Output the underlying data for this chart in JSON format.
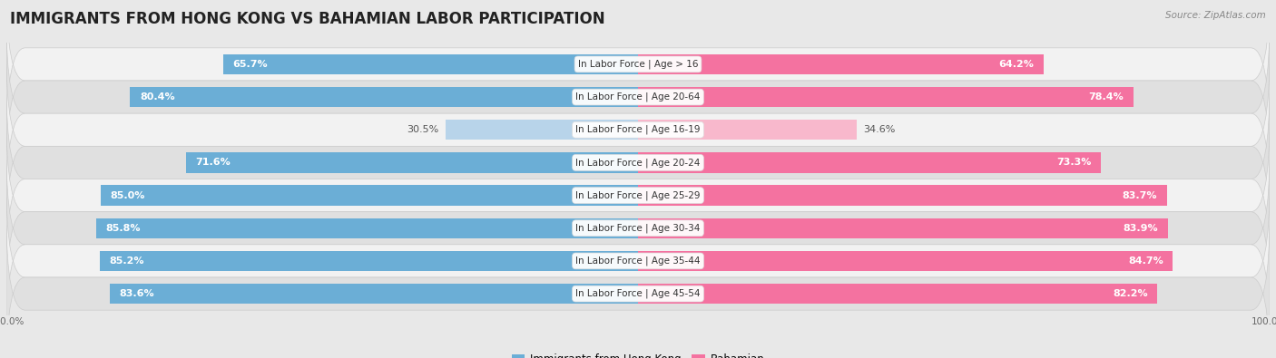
{
  "title": "IMMIGRANTS FROM HONG KONG VS BAHAMIAN LABOR PARTICIPATION",
  "source": "Source: ZipAtlas.com",
  "categories": [
    "In Labor Force | Age > 16",
    "In Labor Force | Age 20-64",
    "In Labor Force | Age 16-19",
    "In Labor Force | Age 20-24",
    "In Labor Force | Age 25-29",
    "In Labor Force | Age 30-34",
    "In Labor Force | Age 35-44",
    "In Labor Force | Age 45-54"
  ],
  "hk_values": [
    65.7,
    80.4,
    30.5,
    71.6,
    85.0,
    85.8,
    85.2,
    83.6
  ],
  "bah_values": [
    64.2,
    78.4,
    34.6,
    73.3,
    83.7,
    83.9,
    84.7,
    82.2
  ],
  "hk_color": "#6baed6",
  "bah_color": "#f472a0",
  "hk_light_color": "#b8d4ea",
  "bah_light_color": "#f8b8cc",
  "bg_color": "#e8e8e8",
  "row_bg_even": "#f2f2f2",
  "row_bg_odd": "#e0e0e0",
  "bar_height": 0.62,
  "max_val": 100.0,
  "legend_hk": "Immigrants from Hong Kong",
  "legend_bah": "Bahamian",
  "title_fontsize": 12,
  "label_fontsize": 8.0,
  "cat_fontsize": 7.5,
  "tick_fontsize": 7.5,
  "source_fontsize": 7.5,
  "value_label_color_light": "#555555",
  "value_label_color_dark": "white"
}
